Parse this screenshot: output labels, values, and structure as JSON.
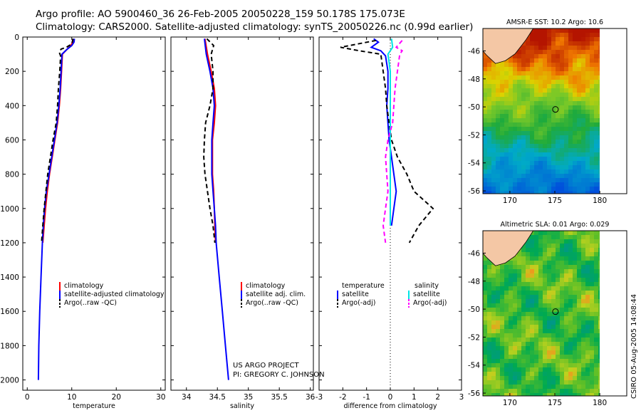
{
  "header": {
    "line1": "Argo profile: AO 5900460_36 26-Feb-2005 20050228_159 50.178S 175.073E",
    "line2": "Climatology: CARS2000. Satellite-adjusted climatology: synTS_20050226.nc (0.99d earlier)"
  },
  "credit": {
    "line1": "US ARGO PROJECT",
    "line2": "PI: GREGORY C. JOHNSON"
  },
  "stamp": "CSIRO 05-Aug-2005 14:08:44",
  "colors": {
    "climatology": "#ff0000",
    "satellite": "#0000ff",
    "argo": "#000000",
    "sal_satellite": "#00e5e5",
    "sal_argo": "#ff00ff",
    "land": "#f4c7a5"
  },
  "chart_data": [
    {
      "type": "line",
      "id": "temperature",
      "xlabel": "temperature",
      "ylabel": "",
      "xlim": [
        -1,
        31
      ],
      "ylim": [
        2060,
        0
      ],
      "xticks": [
        0,
        10,
        20,
        30
      ],
      "yticks": [
        0,
        200,
        400,
        600,
        800,
        1000,
        1200,
        1400,
        1600,
        1800,
        2000
      ],
      "legend": [
        "climatology",
        "satellite-adjusted climatology",
        "Argo(..raw -QC)"
      ],
      "series": [
        {
          "name": "climatology",
          "color": "#ff0000",
          "dash": "",
          "points": [
            [
              10.3,
              10
            ],
            [
              10.2,
              30
            ],
            [
              9.8,
              50
            ],
            [
              9.0,
              70
            ],
            [
              7.9,
              100
            ],
            [
              7.7,
              200
            ],
            [
              7.5,
              300
            ],
            [
              7.2,
              400
            ],
            [
              6.8,
              500
            ],
            [
              6.2,
              600
            ],
            [
              5.6,
              700
            ],
            [
              5.0,
              800
            ],
            [
              4.5,
              900
            ],
            [
              4.1,
              1000
            ],
            [
              3.8,
              1100
            ],
            [
              3.5,
              1200
            ]
          ]
        },
        {
          "name": "satellite-adjusted climatology",
          "color": "#0000ff",
          "dash": "",
          "points": [
            [
              10.6,
              10
            ],
            [
              10.5,
              30
            ],
            [
              10.0,
              50
            ],
            [
              9.0,
              70
            ],
            [
              7.8,
              100
            ],
            [
              7.6,
              200
            ],
            [
              7.4,
              300
            ],
            [
              7.1,
              400
            ],
            [
              6.7,
              500
            ],
            [
              6.1,
              600
            ],
            [
              5.5,
              700
            ],
            [
              4.9,
              800
            ],
            [
              4.3,
              900
            ],
            [
              3.9,
              1000
            ],
            [
              3.6,
              1100
            ],
            [
              3.4,
              1200
            ],
            [
              3.1,
              1400
            ],
            [
              2.8,
              1600
            ],
            [
              2.6,
              1800
            ],
            [
              2.5,
              2000
            ]
          ]
        },
        {
          "name": "Argo(..raw -QC)",
          "color": "#000000",
          "dash": "6,4",
          "points": [
            [
              10.3,
              10
            ],
            [
              10.0,
              40
            ],
            [
              8.8,
              60
            ],
            [
              7.6,
              70
            ],
            [
              7.2,
              90
            ],
            [
              7.5,
              110
            ],
            [
              7.3,
              200
            ],
            [
              7.0,
              300
            ],
            [
              6.8,
              400
            ],
            [
              6.5,
              500
            ],
            [
              5.8,
              600
            ],
            [
              5.2,
              700
            ],
            [
              4.6,
              800
            ],
            [
              4.2,
              900
            ],
            [
              3.8,
              1000
            ],
            [
              3.5,
              1100
            ],
            [
              3.2,
              1200
            ]
          ]
        }
      ]
    },
    {
      "type": "line",
      "id": "salinity",
      "xlabel": "salinity",
      "ylabel": "",
      "xlim": [
        33.75,
        36.05
      ],
      "ylim": [
        2060,
        0
      ],
      "xticks": [
        34,
        34.5,
        35,
        35.5,
        36
      ],
      "legend": [
        "climatology",
        "satellite adj. clim.",
        "Argo(..raw -QC)"
      ],
      "series": [
        {
          "name": "climatology",
          "color": "#ff0000",
          "dash": "",
          "points": [
            [
              34.3,
              10
            ],
            [
              34.34,
              100
            ],
            [
              34.4,
              200
            ],
            [
              34.45,
              300
            ],
            [
              34.47,
              400
            ],
            [
              34.45,
              500
            ],
            [
              34.42,
              600
            ],
            [
              34.42,
              700
            ],
            [
              34.42,
              800
            ],
            [
              34.44,
              900
            ],
            [
              34.45,
              1000
            ],
            [
              34.46,
              1100
            ],
            [
              34.47,
              1200
            ]
          ]
        },
        {
          "name": "satellite adj. clim.",
          "color": "#0000ff",
          "dash": "",
          "points": [
            [
              34.29,
              10
            ],
            [
              34.32,
              100
            ],
            [
              34.38,
              200
            ],
            [
              34.43,
              300
            ],
            [
              34.45,
              400
            ],
            [
              34.43,
              500
            ],
            [
              34.41,
              600
            ],
            [
              34.41,
              700
            ],
            [
              34.41,
              800
            ],
            [
              34.43,
              900
            ],
            [
              34.45,
              1000
            ],
            [
              34.47,
              1100
            ],
            [
              34.48,
              1200
            ],
            [
              34.53,
              1400
            ],
            [
              34.58,
              1600
            ],
            [
              34.63,
              1800
            ],
            [
              34.68,
              2000
            ]
          ]
        },
        {
          "name": "Argo(..raw -QC)",
          "color": "#000000",
          "dash": "6,4",
          "points": [
            [
              34.33,
              10
            ],
            [
              34.44,
              50
            ],
            [
              34.4,
              100
            ],
            [
              34.43,
              200
            ],
            [
              34.43,
              300
            ],
            [
              34.38,
              400
            ],
            [
              34.31,
              500
            ],
            [
              34.29,
              600
            ],
            [
              34.28,
              700
            ],
            [
              34.3,
              800
            ],
            [
              34.34,
              900
            ],
            [
              34.38,
              1000
            ],
            [
              34.43,
              1100
            ],
            [
              34.46,
              1200
            ]
          ]
        }
      ]
    },
    {
      "type": "line",
      "id": "difference",
      "xlabel": "difference from climatology",
      "ylabel": "",
      "xlim": [
        -3,
        3
      ],
      "ylim": [
        2060,
        0
      ],
      "xticks": [
        -3,
        -2,
        -1,
        0,
        1,
        2,
        3
      ],
      "legend_left_title": "temperature",
      "legend_left": [
        "satellite",
        "Argo(-adj)"
      ],
      "legend_right_title": "salinity",
      "legend_right": [
        "satellite",
        "Argo(-adj)"
      ],
      "series": [
        {
          "name": "temperature satellite",
          "color": "#0000ff",
          "dash": "",
          "points": [
            [
              -0.7,
              10
            ],
            [
              -0.5,
              30
            ],
            [
              -0.8,
              60
            ],
            [
              -0.4,
              80
            ],
            [
              -0.2,
              110
            ],
            [
              -0.1,
              200
            ],
            [
              -0.1,
              300
            ],
            [
              -0.15,
              400
            ],
            [
              -0.1,
              500
            ],
            [
              -0.05,
              600
            ],
            [
              0.05,
              700
            ],
            [
              0.15,
              800
            ],
            [
              0.25,
              900
            ],
            [
              0.15,
              1000
            ],
            [
              0.05,
              1100
            ]
          ]
        },
        {
          "name": "temperature Argo(-adj)",
          "color": "#000000",
          "dash": "6,4",
          "points": [
            [
              -0.6,
              20
            ],
            [
              -2.1,
              60
            ],
            [
              -1.3,
              80
            ],
            [
              -0.4,
              100
            ],
            [
              -0.3,
              200
            ],
            [
              -0.2,
              300
            ],
            [
              -0.15,
              400
            ],
            [
              -0.05,
              500
            ],
            [
              0.05,
              600
            ],
            [
              0.3,
              700
            ],
            [
              0.7,
              800
            ],
            [
              1.0,
              900
            ],
            [
              1.8,
              1000
            ],
            [
              1.2,
              1100
            ],
            [
              0.8,
              1200
            ]
          ]
        },
        {
          "name": "salinity satellite",
          "color": "#00e5e5",
          "dash": "",
          "points": [
            [
              0.05,
              10
            ],
            [
              0.1,
              60
            ],
            [
              -0.1,
              100
            ],
            [
              0.0,
              200
            ],
            [
              0.0,
              300
            ],
            [
              0.0,
              500
            ],
            [
              0.0,
              700
            ],
            [
              0.0,
              900
            ],
            [
              0.0,
              1100
            ]
          ]
        },
        {
          "name": "salinity Argo(-adj)",
          "color": "#ff00ff",
          "dash": "6,4",
          "points": [
            [
              0.5,
              20
            ],
            [
              0.25,
              60
            ],
            [
              0.5,
              80
            ],
            [
              0.4,
              100
            ],
            [
              0.3,
              200
            ],
            [
              0.2,
              300
            ],
            [
              0.15,
              400
            ],
            [
              0.1,
              500
            ],
            [
              -0.1,
              600
            ],
            [
              -0.2,
              700
            ],
            [
              -0.15,
              800
            ],
            [
              -0.1,
              900
            ],
            [
              -0.2,
              1000
            ],
            [
              -0.3,
              1100
            ],
            [
              -0.2,
              1200
            ]
          ]
        }
      ]
    },
    {
      "type": "heatmap",
      "id": "sst",
      "title": "AMSR-E SST: 10.2 Argo: 10.6",
      "xlim": [
        167,
        183
      ],
      "ylim": [
        -56.2,
        -44.4
      ],
      "xticks": [
        170,
        175,
        180
      ],
      "yticks": [
        -46,
        -48,
        -50,
        -52,
        -54,
        -56
      ],
      "marker": [
        175.07,
        -50.18
      ],
      "scale": "sst"
    },
    {
      "type": "heatmap",
      "id": "sla",
      "title": "Altimetric SLA: 0.01 Argo: 0.029",
      "xlim": [
        167,
        183
      ],
      "ylim": [
        -56.2,
        -44.4
      ],
      "xticks": [
        170,
        175,
        180
      ],
      "yticks": [
        -46,
        -48,
        -50,
        -52,
        -54,
        -56
      ],
      "marker": [
        175.07,
        -50.18
      ],
      "scale": "sla"
    }
  ]
}
